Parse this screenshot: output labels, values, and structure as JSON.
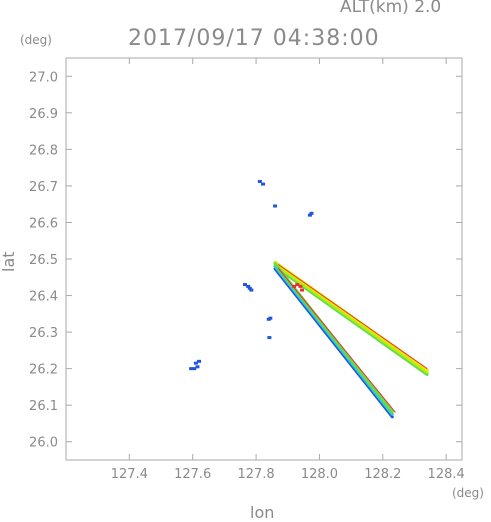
{
  "header": {
    "alt_label": "ALT(km)  2.0",
    "timestamp": "2017/09/17 04:38:00"
  },
  "chart_data": {
    "type": "scatter",
    "title": "2017/09/17 04:38:00",
    "xlabel": "lon",
    "ylabel": "lat",
    "x_unit": "(deg)",
    "y_unit": "(deg)",
    "xlim": [
      127.2,
      128.45
    ],
    "ylim": [
      25.95,
      27.05
    ],
    "x_ticks": [
      "127.4",
      "127.6",
      "127.8",
      "128.0",
      "128.2",
      "128.4"
    ],
    "y_ticks": [
      "26.0",
      "26.1",
      "26.2",
      "26.3",
      "26.4",
      "26.5",
      "26.6",
      "26.7",
      "26.8",
      "26.9",
      "27.0"
    ],
    "grid": false,
    "colors": {
      "axis": "#aaaaaa",
      "text": "#8a8a8a",
      "low": "#2255dd",
      "mid": "#33cccc",
      "green": "#66dd44",
      "yellow": "#e6e600",
      "red": "#e83030"
    },
    "echoes": [
      {
        "name": "upper-beam",
        "type": "band",
        "from": [
          127.86,
          26.485
        ],
        "to": [
          128.34,
          26.19
        ],
        "width": 0.006,
        "colors": [
          "#66dd44",
          "#aaee22",
          "#e6e600"
        ]
      },
      {
        "name": "lower-beam",
        "type": "band",
        "from": [
          127.86,
          26.48
        ],
        "to": [
          128.23,
          26.075
        ],
        "width": 0.007,
        "colors": [
          "#2255dd",
          "#33cccc",
          "#66dd44"
        ]
      },
      {
        "name": "lower-beam-edge",
        "type": "line",
        "from": [
          127.87,
          26.475
        ],
        "to": [
          128.24,
          26.08
        ],
        "color": "#e83030"
      },
      {
        "name": "upper-beam-edge",
        "type": "line",
        "from": [
          127.87,
          26.485
        ],
        "to": [
          128.34,
          26.2
        ],
        "color": "#e83030"
      },
      {
        "name": "blob-1",
        "type": "cluster",
        "points": [
          [
            127.595,
            26.2
          ],
          [
            127.605,
            26.2
          ],
          [
            127.61,
            26.215
          ],
          [
            127.62,
            26.22
          ],
          [
            127.615,
            26.205
          ]
        ],
        "color": "#2255dd"
      },
      {
        "name": "blob-2",
        "type": "cluster",
        "points": [
          [
            127.765,
            26.43
          ],
          [
            127.775,
            26.425
          ],
          [
            127.785,
            26.415
          ],
          [
            127.78,
            26.42
          ]
        ],
        "color": "#2255dd"
      },
      {
        "name": "blob-3",
        "type": "cluster",
        "points": [
          [
            127.84,
            26.335
          ],
          [
            127.845,
            26.338
          ]
        ],
        "color": "#2255dd"
      },
      {
        "name": "blob-4",
        "type": "cluster",
        "points": [
          [
            127.97,
            26.62
          ],
          [
            127.975,
            26.625
          ]
        ],
        "color": "#2255dd"
      },
      {
        "name": "blob-5",
        "type": "cluster",
        "points": [
          [
            127.812,
            26.712
          ],
          [
            127.822,
            26.705
          ]
        ],
        "color": "#2255dd"
      },
      {
        "name": "blob-6",
        "type": "cluster",
        "points": [
          [
            127.86,
            26.645
          ]
        ],
        "color": "#2255dd"
      },
      {
        "name": "blob-7",
        "type": "cluster",
        "points": [
          [
            127.842,
            26.285
          ]
        ],
        "color": "#2255dd"
      },
      {
        "name": "blob-8",
        "type": "cluster",
        "points": [
          [
            127.92,
            26.425
          ],
          [
            127.93,
            26.43
          ],
          [
            127.94,
            26.425
          ],
          [
            127.945,
            26.415
          ]
        ],
        "color": "#e83030"
      }
    ]
  }
}
